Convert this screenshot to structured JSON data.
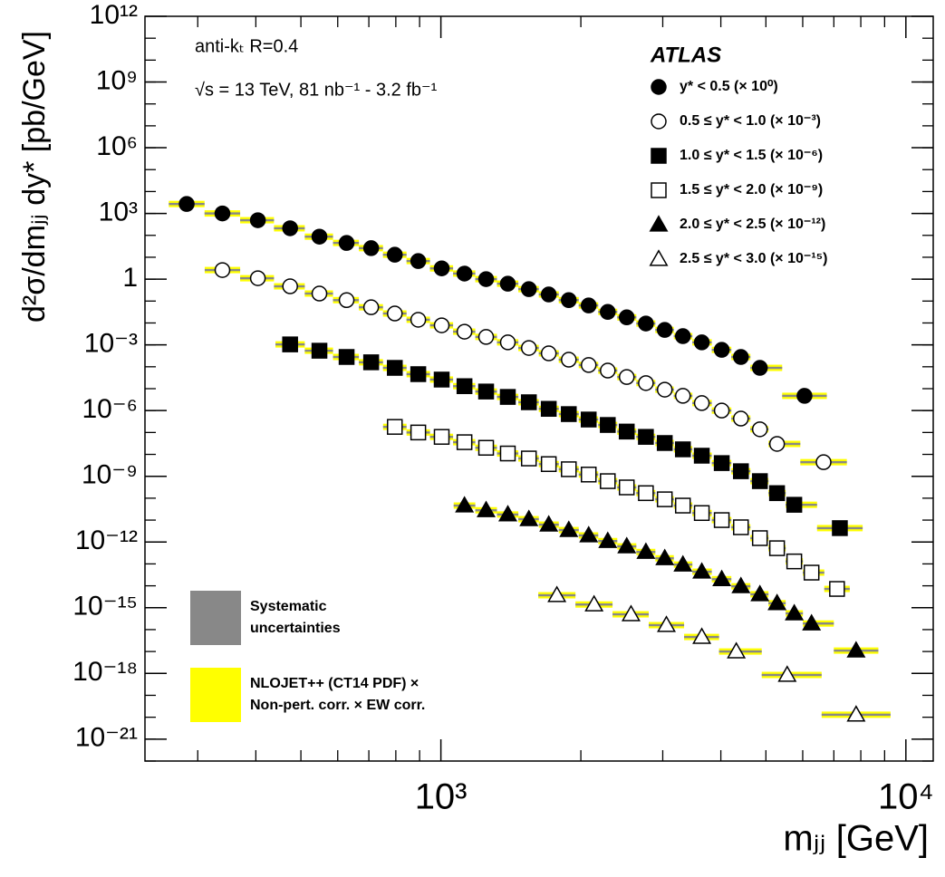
{
  "chart_data": {
    "type": "scatter",
    "x_label": "mⱼⱼ [GeV]",
    "y_label": "d²σ/dmⱼⱼ dy* [pb/GeV]",
    "log_x": true,
    "log_y": true,
    "xlim": [
      231,
      11450
    ],
    "ylim": [
      1e-22,
      1000000000000.0
    ],
    "xticks": [
      {
        "value": 1000,
        "label": "10³"
      },
      {
        "value": 10000,
        "label": "10⁴"
      }
    ],
    "yticks": [
      {
        "value": 1e-21,
        "label": "10⁻²¹"
      },
      {
        "value": 1e-18,
        "label": "10⁻¹⁸"
      },
      {
        "value": 1e-15,
        "label": "10⁻¹⁵"
      },
      {
        "value": 1e-12,
        "label": "10⁻¹²"
      },
      {
        "value": 1e-09,
        "label": "10⁻⁹"
      },
      {
        "value": 1e-06,
        "label": "10⁻⁶"
      },
      {
        "value": 0.001,
        "label": "10⁻³"
      },
      1,
      {
        "value": 1000.0,
        "label": "10³"
      },
      {
        "value": 1000000.0,
        "label": "10⁶"
      },
      {
        "value": 1000000000.0,
        "label": "10⁹"
      },
      {
        "value": 1000000000000.0,
        "label": "10¹²"
      }
    ],
    "annotations": [
      "anti-kₜ R=0.4",
      "√s = 13 TeV,  81 nb⁻¹ - 3.2 fb⁻¹"
    ],
    "experiment": "ATLAS",
    "band_legend": [
      {
        "color": "#888888",
        "lines": [
          "Systematic",
          "uncertainties"
        ]
      },
      {
        "color": "#ffff00",
        "lines": [
          "NLOJET++ (CT14 PDF) ×",
          "Non-pert. corr. × EW corr."
        ]
      }
    ],
    "series": [
      {
        "name": "y* < 0.5 (× 10⁰)",
        "color": "#000000",
        "marker": "circle",
        "filled": true,
        "x": [
          284,
          339,
          404,
          474,
          548,
          627,
          708,
          796,
          894,
          1004,
          1124,
          1251,
          1393,
          1546,
          1706,
          1884,
          2079,
          2285,
          2510,
          2760,
          3030,
          3315,
          3640,
          4018,
          4418,
          4853,
          6053
        ],
        "values": [
          2700.0,
          1000.0,
          490.0,
          210.0,
          87,
          45,
          26,
          13,
          6.7,
          3.1,
          1.8,
          1.0,
          0.62,
          0.35,
          0.2,
          0.11,
          0.063,
          0.032,
          0.018,
          0.0094,
          0.0048,
          0.0025,
          0.0013,
          0.00059,
          0.00028,
          8.9e-05,
          4.7e-06
        ]
      },
      {
        "name": "0.5 ≤ y* < 1.0 (× 10⁻³)",
        "color": "#000000",
        "marker": "circle",
        "filled": false,
        "x": [
          339,
          404,
          474,
          548,
          627,
          708,
          796,
          894,
          1004,
          1124,
          1251,
          1393,
          1546,
          1706,
          1884,
          2079,
          2285,
          2510,
          2760,
          3030,
          3315,
          3640,
          4018,
          4418,
          4853,
          5284,
          6653
        ],
        "values": [
          2.6,
          1.1,
          0.47,
          0.22,
          0.11,
          0.052,
          0.027,
          0.014,
          0.0078,
          0.004,
          0.0023,
          0.0013,
          0.00072,
          0.00041,
          0.00021,
          0.00012,
          6.7e-05,
          3.4e-05,
          1.8e-05,
          9e-06,
          4.7e-06,
          2.2e-06,
          1e-06,
          4.3e-07,
          1.4e-07,
          3e-08,
          4.4e-09
        ]
      },
      {
        "name": "1.0 ≤ y* < 1.5 (× 10⁻⁶)",
        "color": "#000000",
        "marker": "square",
        "filled": true,
        "x": [
          474,
          548,
          627,
          708,
          796,
          894,
          1004,
          1124,
          1251,
          1393,
          1546,
          1706,
          1884,
          2079,
          2285,
          2510,
          2760,
          3030,
          3315,
          3640,
          4018,
          4418,
          4853,
          5284,
          5754,
          7211
        ],
        "values": [
          0.00105,
          0.00054,
          0.00028,
          0.00016,
          8.9e-05,
          4.6e-05,
          2.6e-05,
          1.3e-05,
          7.4e-06,
          4.2e-06,
          2.4e-06,
          1.2e-06,
          6.9e-07,
          3.9e-07,
          2.2e-07,
          1.1e-07,
          6.3e-08,
          3.3e-08,
          1.7e-08,
          8.7e-09,
          4e-09,
          1.7e-09,
          6e-10,
          1.7e-10,
          5e-11,
          4.3e-12
        ]
      },
      {
        "name": "1.5 ≤ y* < 2.0 (× 10⁻⁹)",
        "color": "#000000",
        "marker": "square",
        "filled": false,
        "x": [
          796,
          894,
          1004,
          1124,
          1251,
          1393,
          1546,
          1706,
          1884,
          2079,
          2285,
          2510,
          2760,
          3030,
          3315,
          3640,
          4018,
          4418,
          4853,
          5284,
          5754,
          6268,
          7111
        ],
        "values": [
          1.8e-07,
          1e-07,
          6.3e-08,
          3.6e-08,
          2e-08,
          1.1e-08,
          6.5e-09,
          3.6e-09,
          2.1e-09,
          1.2e-09,
          6e-10,
          3.1e-10,
          1.7e-10,
          8.9e-11,
          4.6e-11,
          2.1e-11,
          1e-11,
          4.7e-12,
          1.5e-12,
          5.2e-13,
          1.3e-13,
          4e-14,
          7.2e-15
        ]
      },
      {
        "name": "2.0 ≤ y* < 2.5 (× 10⁻¹²)",
        "color": "#000000",
        "marker": "triangle",
        "filled": true,
        "x": [
          1124,
          1251,
          1393,
          1546,
          1706,
          1884,
          2079,
          2285,
          2510,
          2760,
          3030,
          3315,
          3640,
          4018,
          4418,
          4853,
          5284,
          5754,
          6268,
          7815
        ],
        "values": [
          4.6e-11,
          2.8e-11,
          1.8e-11,
          1.1e-11,
          6.2e-12,
          3.5e-12,
          2e-12,
          1.1e-12,
          6.3e-13,
          3.5e-13,
          1.8e-13,
          9.3e-14,
          4.4e-14,
          2e-14,
          9.5e-15,
          4.1e-15,
          1.6e-15,
          5.5e-16,
          1.9e-16,
          1.1e-17
        ]
      },
      {
        "name": "2.5 ≤ y* < 3.0 (× 10⁻¹⁵)",
        "color": "#000000",
        "marker": "triangle",
        "filled": false,
        "x": [
          1776,
          2135,
          2564,
          3055,
          3640,
          4318,
          5556,
          7815
        ],
        "values": [
          3.7e-15,
          1.4e-15,
          5e-16,
          1.6e-16,
          4.6e-17,
          1e-17,
          8.5e-19,
          1.3e-20
        ]
      }
    ]
  }
}
